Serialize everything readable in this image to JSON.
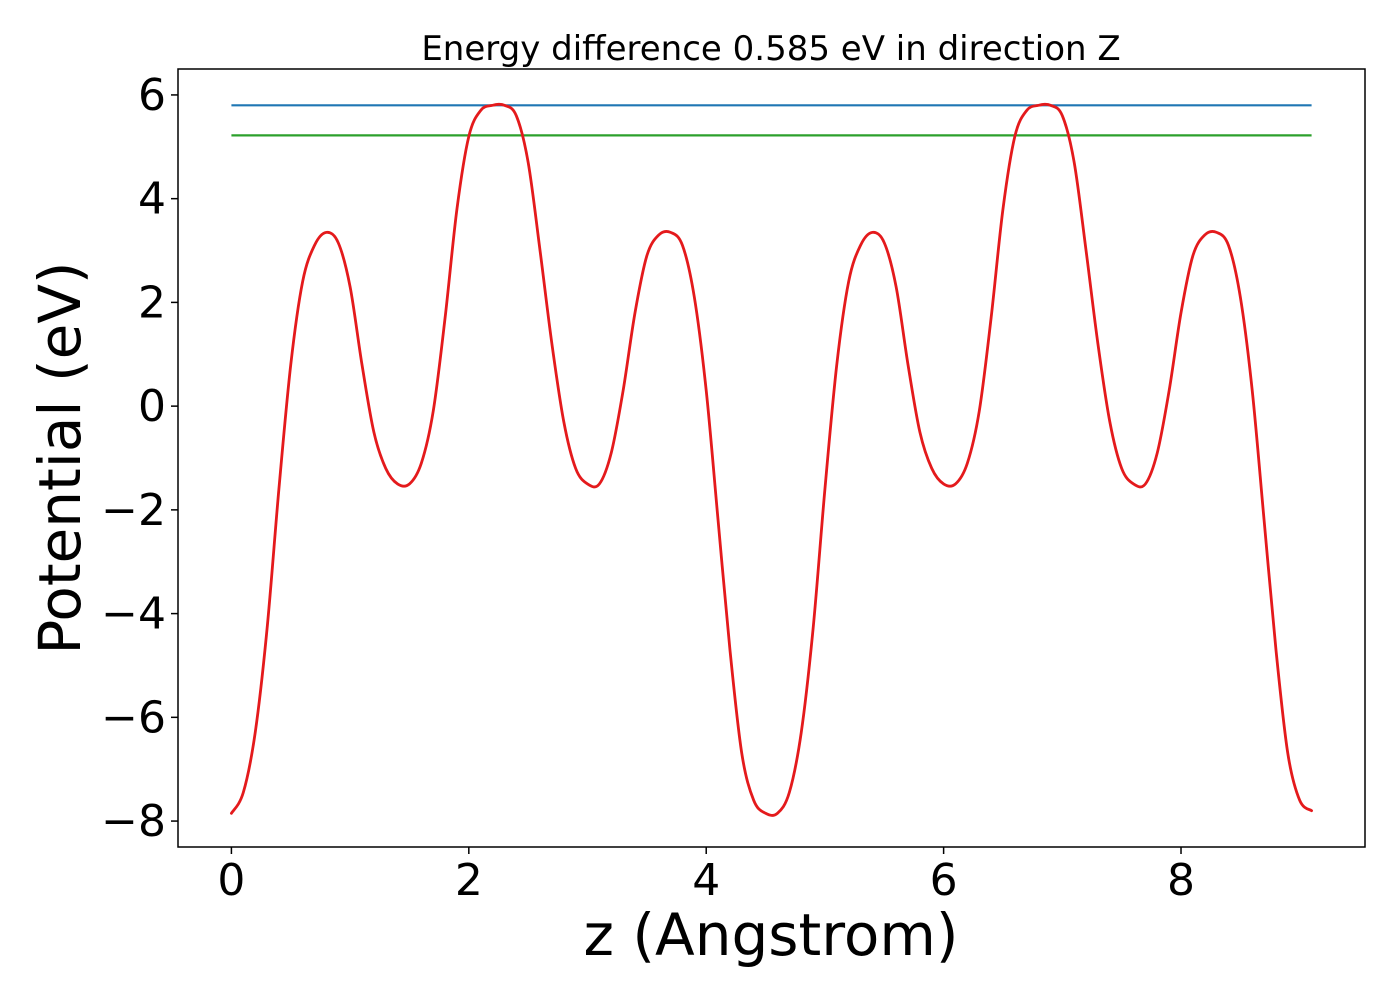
{
  "chart_data": {
    "type": "line",
    "title": "Energy difference 0.585 eV in direction Z",
    "xlabel": "z (Angstrom)",
    "ylabel": "Potential (eV)",
    "xlim": [
      -0.45,
      9.55
    ],
    "ylim": [
      -8.5,
      6.5
    ],
    "x_ticks": [
      0,
      2,
      4,
      6,
      8
    ],
    "x_tick_labels": [
      "0",
      "2",
      "4",
      "6",
      "8"
    ],
    "y_ticks": [
      6,
      4,
      2,
      0,
      -2,
      -4,
      -6,
      -8
    ],
    "y_tick_labels": [
      "6",
      "4",
      "2",
      "0",
      "−2",
      "−4",
      "−6",
      "−8"
    ],
    "grid": false,
    "legend": "none",
    "potential_curve": {
      "color": "#e41a1c",
      "x": [
        0.0,
        0.1,
        0.2,
        0.3,
        0.4,
        0.5,
        0.6,
        0.7,
        0.8,
        0.9,
        1.0,
        1.1,
        1.2,
        1.3,
        1.4,
        1.5,
        1.6,
        1.7,
        1.8,
        1.9,
        2.0,
        2.1,
        2.2,
        2.3,
        2.4,
        2.5,
        2.6,
        2.7,
        2.8,
        2.9,
        3.0,
        3.1,
        3.2,
        3.3,
        3.4,
        3.5,
        3.6,
        3.7,
        3.8,
        3.9,
        4.0,
        4.1,
        4.2,
        4.3,
        4.4,
        4.5,
        4.6,
        4.7,
        4.8,
        4.9,
        5.0,
        5.1,
        5.2,
        5.3,
        5.4,
        5.5,
        5.6,
        5.7,
        5.8,
        5.9,
        6.0,
        6.1,
        6.2,
        6.3,
        6.4,
        6.5,
        6.6,
        6.7,
        6.8,
        6.9,
        7.0,
        7.1,
        7.2,
        7.3,
        7.4,
        7.5,
        7.6,
        7.7,
        7.8,
        7.9,
        8.0,
        8.1,
        8.2,
        8.3,
        8.4,
        8.5,
        8.6,
        8.7,
        8.8,
        8.9,
        9.0,
        9.1
      ],
      "y": [
        -7.85,
        -7.45,
        -6.3,
        -4.3,
        -1.6,
        0.8,
        2.4,
        3.1,
        3.35,
        3.15,
        2.3,
        0.8,
        -0.5,
        -1.2,
        -1.5,
        -1.5,
        -1.1,
        -0.1,
        1.7,
        3.8,
        5.2,
        5.7,
        5.8,
        5.8,
        5.6,
        4.7,
        3.0,
        1.2,
        -0.3,
        -1.2,
        -1.5,
        -1.5,
        -0.9,
        0.3,
        1.8,
        2.9,
        3.3,
        3.35,
        3.1,
        2.1,
        0.3,
        -2.2,
        -4.7,
        -6.7,
        -7.6,
        -7.85,
        -7.85,
        -7.45,
        -6.3,
        -4.3,
        -1.6,
        0.8,
        2.4,
        3.1,
        3.35,
        3.15,
        2.3,
        0.8,
        -0.5,
        -1.2,
        -1.5,
        -1.5,
        -1.1,
        -0.1,
        1.7,
        3.8,
        5.2,
        5.7,
        5.8,
        5.8,
        5.6,
        4.7,
        3.0,
        1.2,
        -0.3,
        -1.2,
        -1.5,
        -1.5,
        -0.9,
        0.3,
        1.8,
        2.9,
        3.3,
        3.35,
        3.1,
        2.1,
        0.3,
        -2.2,
        -4.7,
        -6.7,
        -7.6,
        -7.8
      ]
    },
    "reference_lines": [
      {
        "color": "#1f77b4",
        "y": 5.8,
        "x_range": [
          0.0,
          9.1
        ]
      },
      {
        "color": "#2ca02c",
        "y": 5.22,
        "x_range": [
          0.0,
          9.1
        ]
      }
    ]
  }
}
